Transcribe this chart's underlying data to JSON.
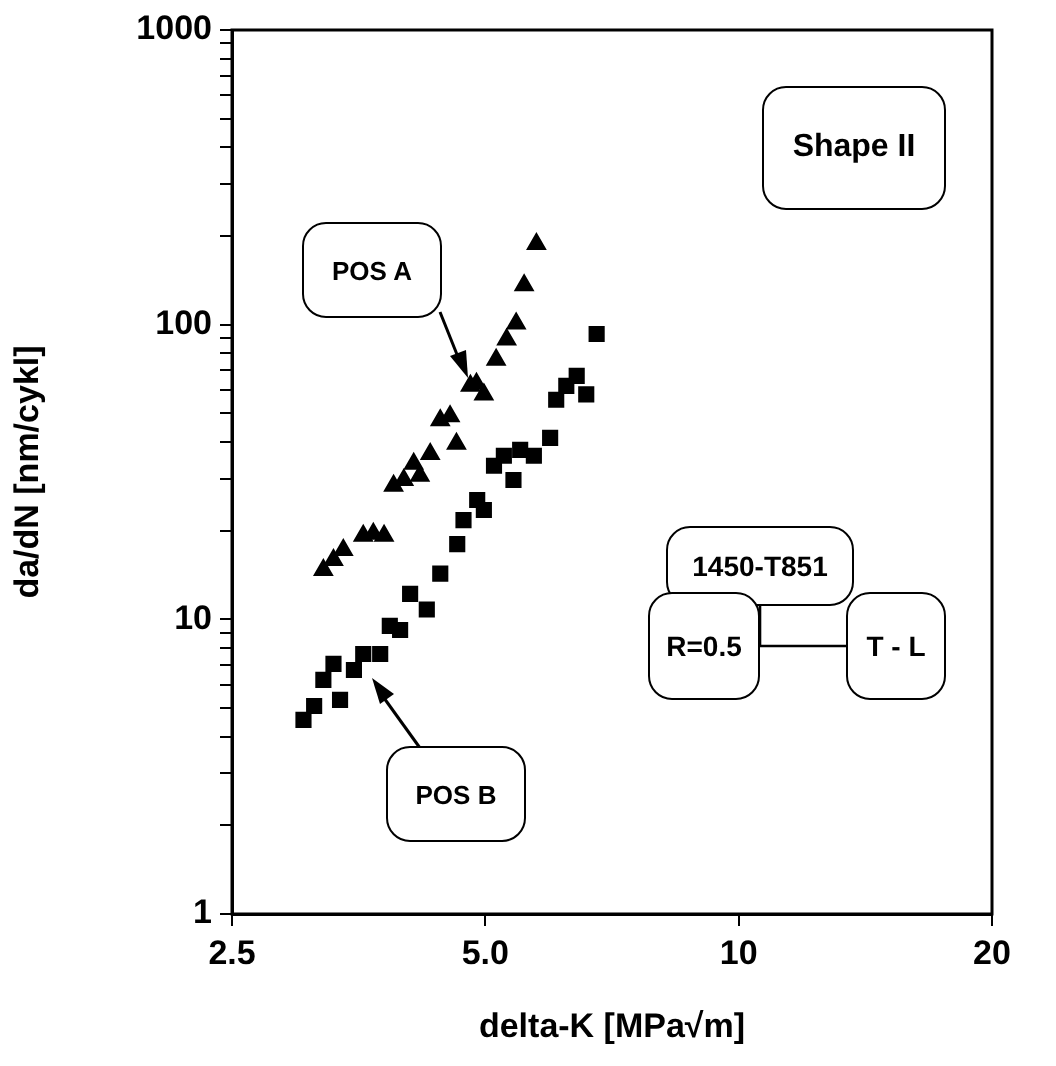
{
  "chart_data": {
    "type": "scatter",
    "xlabel": "delta-K [MPa√m]",
    "ylabel": "da/dN [nm/cykl]",
    "log": "xy",
    "grid": false,
    "legend": false,
    "xlim": [
      2.5,
      20
    ],
    "xticks": [
      2.5,
      {
        "value": 5,
        "label": "5.0"
      },
      10,
      20
    ],
    "ylim": [
      1,
      1000
    ],
    "yticks": [
      1,
      {
        "value": 2,
        "label": null
      },
      {
        "value": 3,
        "label": null
      },
      {
        "value": 4,
        "label": null
      },
      {
        "value": 5,
        "label": null
      },
      {
        "value": 6,
        "label": null
      },
      {
        "value": 7,
        "label": null
      },
      {
        "value": 8,
        "label": null
      },
      {
        "value": 9,
        "label": null
      },
      10,
      {
        "value": 20,
        "label": null
      },
      {
        "value": 30,
        "label": null
      },
      {
        "value": 40,
        "label": null
      },
      {
        "value": 50,
        "label": null
      },
      {
        "value": 60,
        "label": null
      },
      {
        "value": 70,
        "label": null
      },
      {
        "value": 80,
        "label": null
      },
      {
        "value": 90,
        "label": null
      },
      100,
      {
        "value": 200,
        "label": null
      },
      {
        "value": 300,
        "label": null
      },
      {
        "value": 400,
        "label": null
      },
      {
        "value": 500,
        "label": null
      },
      {
        "value": 600,
        "label": null
      },
      {
        "value": 700,
        "label": null
      },
      {
        "value": 800,
        "label": null
      },
      {
        "value": 900,
        "label": null
      },
      1000
    ],
    "series": [
      {
        "color": "#000000",
        "marker": "triangle",
        "x": [
          3.21,
          3.3,
          3.39,
          3.58,
          3.68,
          3.79,
          3.89,
          4.0,
          4.11,
          4.18,
          4.3,
          4.42,
          4.54,
          4.62,
          4.8,
          4.88,
          4.98,
          5.15,
          5.3,
          5.44,
          5.56,
          5.75
        ],
        "values": [
          14.7,
          15.9,
          17.2,
          19.2,
          19.5,
          19.2,
          28.4,
          29.7,
          33.7,
          30.7,
          36.4,
          47.4,
          48.9,
          39.4,
          62,
          63,
          58,
          76,
          89,
          101,
          136,
          188
        ]
      },
      {
        "color": "#000000",
        "marker": "square",
        "x": [
          3.04,
          3.13,
          3.21,
          3.3,
          3.36,
          3.49,
          3.58,
          3.75,
          3.85,
          3.96,
          4.07,
          4.26,
          4.42,
          4.63,
          4.71,
          4.89,
          4.98,
          5.12,
          5.26,
          5.4,
          5.5,
          5.71,
          5.97,
          6.07,
          6.24,
          6.42,
          6.59,
          6.78
        ],
        "values": [
          4.56,
          5.08,
          6.23,
          7.06,
          5.33,
          6.73,
          7.63,
          7.63,
          9.5,
          9.2,
          12.2,
          10.8,
          14.3,
          18.0,
          21.7,
          25.4,
          23.5,
          33.2,
          35.9,
          29.7,
          37.6,
          35.9,
          41.3,
          55.6,
          62,
          67,
          58,
          93
        ]
      }
    ],
    "annotations": [
      "POS A",
      "POS B",
      "Shape II",
      "1450-T851",
      "R=0.5",
      "T - L"
    ]
  }
}
